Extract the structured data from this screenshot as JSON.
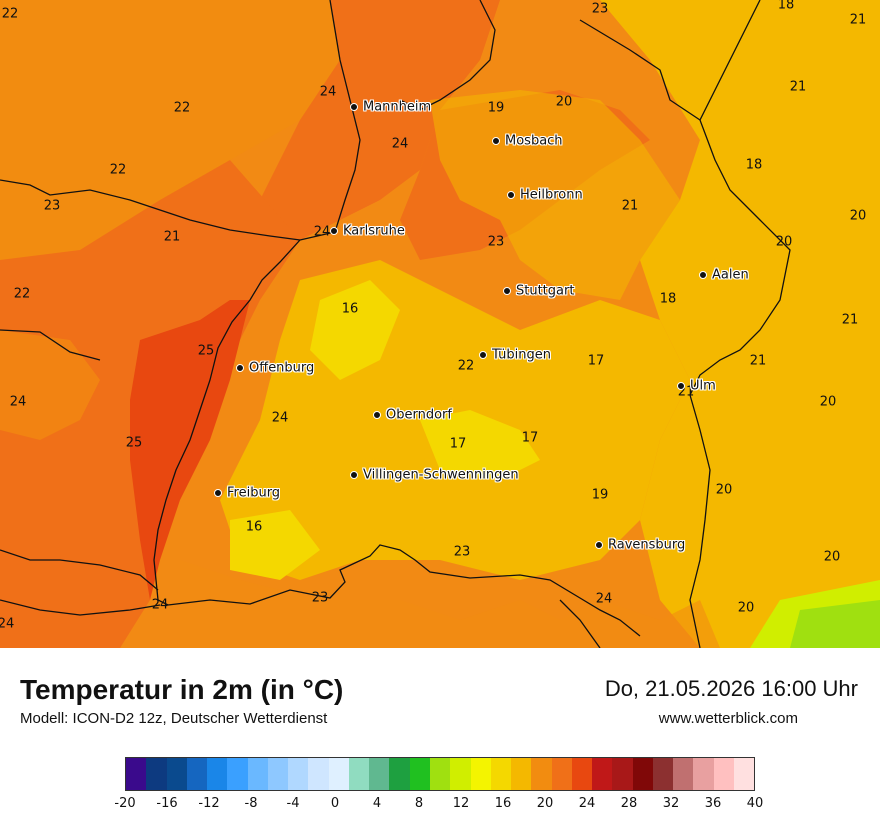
{
  "map": {
    "cities": [
      {
        "name": "Mannheim"
      },
      {
        "name": "Mosbach"
      },
      {
        "name": "Heilbronn"
      },
      {
        "name": "Karlsruhe"
      },
      {
        "name": "Stuttgart"
      },
      {
        "name": "Aalen"
      },
      {
        "name": "Tübingen"
      },
      {
        "name": "Offenburg"
      },
      {
        "name": "Ulm"
      },
      {
        "name": "Oberndorf"
      },
      {
        "name": "Villingen-Schwenningen"
      },
      {
        "name": "Freiburg"
      },
      {
        "name": "Ravensburg"
      }
    ],
    "values": [
      "22",
      "24",
      "19",
      "20",
      "23",
      "18",
      "21",
      "22",
      "24",
      "21",
      "22",
      "23",
      "21",
      "24",
      "18",
      "23",
      "20",
      "20",
      "21",
      "22",
      "16",
      "18",
      "21",
      "25",
      "22",
      "17",
      "21",
      "24",
      "21",
      "20",
      "24",
      "22",
      "17",
      "25",
      "17",
      "20",
      "19",
      "16",
      "23",
      "24",
      "23",
      "20",
      "20",
      "24"
    ]
  },
  "footer": {
    "title": "Temperatur in 2m (in °C)",
    "subtitle": "Modell: ICON-D2 12z, Deutscher Wetterdienst",
    "datetime": "Do, 21.05.2026 16:00 Uhr",
    "website": "www.wetterblick.com"
  },
  "legend": {
    "colors": [
      "#3a0a8c",
      "#0d3a80",
      "#0a4a8e",
      "#1566c0",
      "#1a86e8",
      "#3aa0ff",
      "#6ab8ff",
      "#8ec8ff",
      "#b0d8ff",
      "#cfe6ff",
      "#dff0ff",
      "#90dcc0",
      "#60b890",
      "#1ea040",
      "#20c020",
      "#a0e010",
      "#d0ee00",
      "#f4f400",
      "#f4d800",
      "#f4b800",
      "#f28c10",
      "#f07018",
      "#e84810",
      "#c01818",
      "#a81818",
      "#800808",
      "#8c3030",
      "#c07070",
      "#e8a0a0",
      "#ffc0c0",
      "#ffe0e0"
    ],
    "ticks": [
      "-20",
      "-16",
      "-12",
      "-8",
      "-4",
      "0",
      "4",
      "8",
      "12",
      "16",
      "20",
      "24",
      "28",
      "32",
      "36",
      "40"
    ]
  }
}
